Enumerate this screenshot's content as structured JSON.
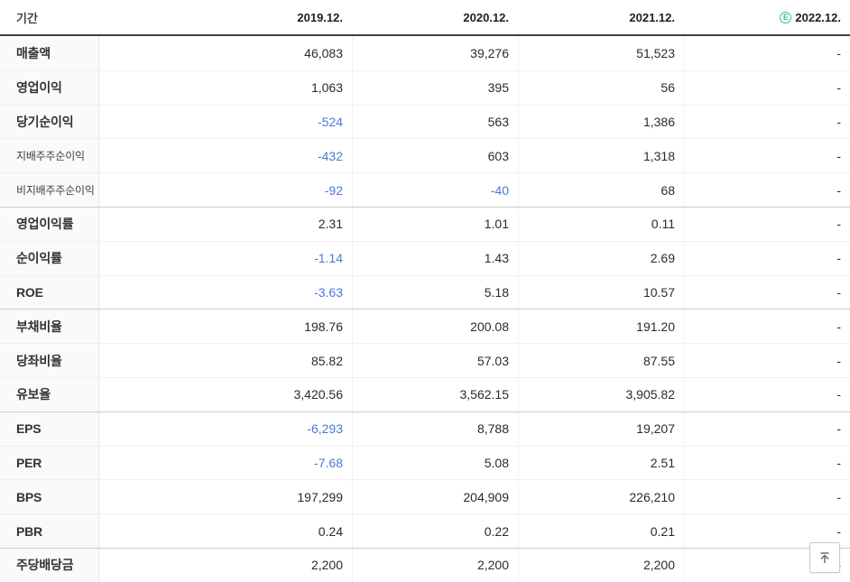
{
  "table": {
    "period_label": "기간",
    "estimate_letter": "E",
    "columns": [
      "2019.12.",
      "2020.12.",
      "2021.12.",
      "2022.12."
    ],
    "rows": [
      {
        "label": "매출액",
        "sub": false,
        "group_start": false,
        "values": [
          "46,083",
          "39,276",
          "51,523",
          "-"
        ],
        "neg": [
          false,
          false,
          false,
          false
        ]
      },
      {
        "label": "영업이익",
        "sub": false,
        "group_start": false,
        "values": [
          "1,063",
          "395",
          "56",
          "-"
        ],
        "neg": [
          false,
          false,
          false,
          false
        ]
      },
      {
        "label": "당기순이익",
        "sub": false,
        "group_start": false,
        "values": [
          "-524",
          "563",
          "1,386",
          "-"
        ],
        "neg": [
          true,
          false,
          false,
          false
        ]
      },
      {
        "label": "지배주주순이익",
        "sub": true,
        "group_start": false,
        "values": [
          "-432",
          "603",
          "1,318",
          "-"
        ],
        "neg": [
          true,
          false,
          false,
          false
        ]
      },
      {
        "label": "비지배주주순이익",
        "sub": true,
        "group_start": false,
        "values": [
          "-92",
          "-40",
          "68",
          "-"
        ],
        "neg": [
          true,
          true,
          false,
          false
        ]
      },
      {
        "label": "영업이익률",
        "sub": false,
        "group_start": true,
        "values": [
          "2.31",
          "1.01",
          "0.11",
          "-"
        ],
        "neg": [
          false,
          false,
          false,
          false
        ]
      },
      {
        "label": "순이익률",
        "sub": false,
        "group_start": false,
        "values": [
          "-1.14",
          "1.43",
          "2.69",
          "-"
        ],
        "neg": [
          true,
          false,
          false,
          false
        ]
      },
      {
        "label": "ROE",
        "sub": false,
        "group_start": false,
        "values": [
          "-3.63",
          "5.18",
          "10.57",
          "-"
        ],
        "neg": [
          true,
          false,
          false,
          false
        ]
      },
      {
        "label": "부채비율",
        "sub": false,
        "group_start": true,
        "values": [
          "198.76",
          "200.08",
          "191.20",
          "-"
        ],
        "neg": [
          false,
          false,
          false,
          false
        ]
      },
      {
        "label": "당좌비율",
        "sub": false,
        "group_start": false,
        "values": [
          "85.82",
          "57.03",
          "87.55",
          "-"
        ],
        "neg": [
          false,
          false,
          false,
          false
        ]
      },
      {
        "label": "유보율",
        "sub": false,
        "group_start": false,
        "values": [
          "3,420.56",
          "3,562.15",
          "3,905.82",
          "-"
        ],
        "neg": [
          false,
          false,
          false,
          false
        ]
      },
      {
        "label": "EPS",
        "sub": false,
        "group_start": true,
        "values": [
          "-6,293",
          "8,788",
          "19,207",
          "-"
        ],
        "neg": [
          true,
          false,
          false,
          false
        ]
      },
      {
        "label": "PER",
        "sub": false,
        "group_start": false,
        "values": [
          "-7.68",
          "5.08",
          "2.51",
          "-"
        ],
        "neg": [
          true,
          false,
          false,
          false
        ]
      },
      {
        "label": "BPS",
        "sub": false,
        "group_start": false,
        "values": [
          "197,299",
          "204,909",
          "226,210",
          "-"
        ],
        "neg": [
          false,
          false,
          false,
          false
        ]
      },
      {
        "label": "PBR",
        "sub": false,
        "group_start": false,
        "values": [
          "0.24",
          "0.22",
          "0.21",
          "-"
        ],
        "neg": [
          false,
          false,
          false,
          false
        ]
      },
      {
        "label": "주당배당금",
        "sub": false,
        "group_start": true,
        "values": [
          "2,200",
          "2,200",
          "2,200",
          "-"
        ],
        "neg": [
          false,
          false,
          false,
          false
        ]
      }
    ]
  },
  "colors": {
    "negative_value": "#4879d9",
    "estimate_green": "#2fc09c",
    "header_border": "#3f3f3f",
    "group_border": "#cccccc"
  }
}
